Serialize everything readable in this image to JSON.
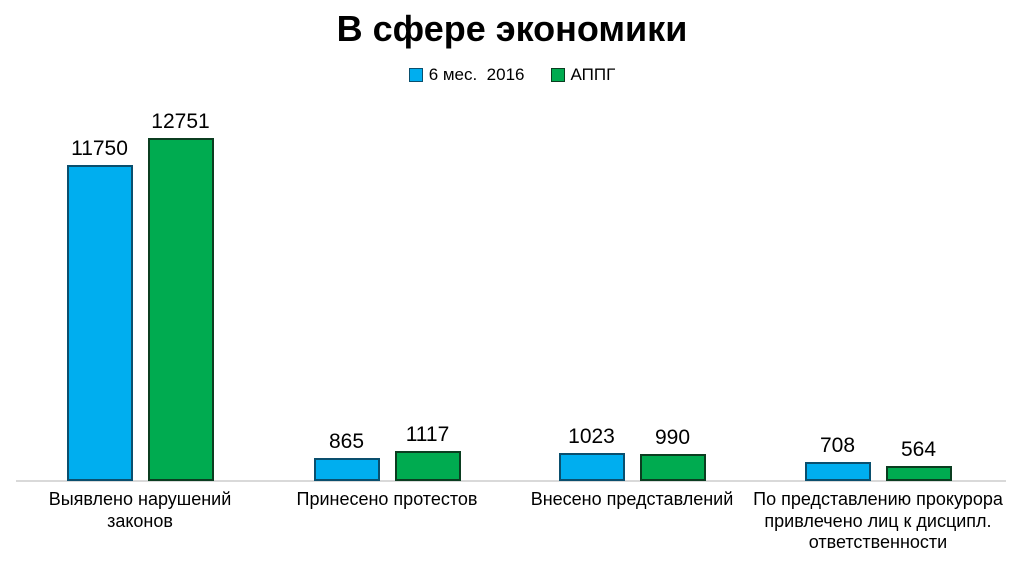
{
  "chart_data": {
    "type": "bar",
    "title": "В сфере экономики",
    "categories": [
      "Выявлено нарушений\nзаконов",
      "Принесено протестов",
      "Внесено представлений",
      "По представлению прокурора\nпривлечено лиц к дисципл.\nответственности"
    ],
    "series": [
      {
        "name": "6 мес.  2016",
        "color": "#00AEEF",
        "border_color": "#0a4f6e",
        "values": [
          11750,
          865,
          1023,
          708
        ]
      },
      {
        "name": "АППГ",
        "color": "#00AB50",
        "border_color": "#0b3d20",
        "values": [
          12751,
          1117,
          990,
          564
        ]
      }
    ],
    "value_labels_shown": true,
    "legend_position": "top",
    "grid": false,
    "axis_line_color": "#d9d9d9",
    "background_color": "#ffffff",
    "text_color": "#000000"
  }
}
